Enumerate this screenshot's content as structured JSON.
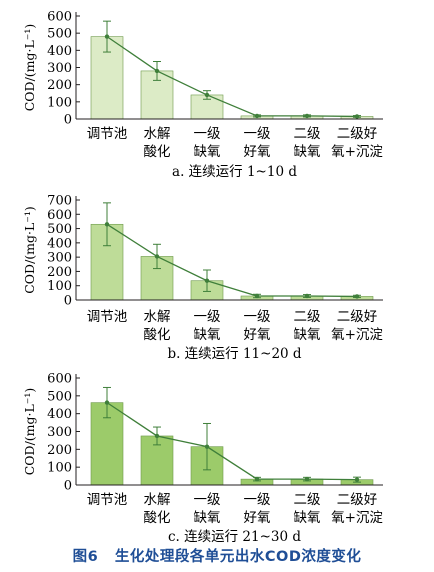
{
  "figure_caption": {
    "number": "图6",
    "title": "生化处理段各单元出水COD浓度变化"
  },
  "colors": {
    "panel_a_bar": "#dcebc6",
    "panel_b_bar": "#bedc98",
    "panel_c_bar": "#9ccb6a",
    "line": "#3f7f3a",
    "axis": "#231f20",
    "caption": "#1f4e96"
  },
  "chart_data": [
    {
      "type": "bar",
      "caption": "a. 连续运行 1~10 d",
      "ylabel": "COD/(mg·L⁻¹)",
      "ylim": [
        0,
        600
      ],
      "yticks": [
        "0",
        "100",
        "200",
        "300",
        "400",
        "500",
        "600"
      ],
      "categories": [
        [
          "调节池"
        ],
        [
          "水解",
          "酸化"
        ],
        [
          "一级",
          "缺氧"
        ],
        [
          "一级",
          "好氧"
        ],
        [
          "二级",
          "缺氧"
        ],
        [
          "二级好",
          "氧+沉淀"
        ]
      ],
      "values": [
        480,
        280,
        140,
        18,
        18,
        15
      ],
      "errors": [
        90,
        55,
        25,
        6,
        6,
        5
      ],
      "overlay_line": true
    },
    {
      "type": "bar",
      "caption": "b. 连续运行 11~20 d",
      "ylabel": "COD/(mg·L⁻¹)",
      "ylim": [
        0,
        700
      ],
      "yticks": [
        "0",
        "100",
        "200",
        "300",
        "400",
        "500",
        "600",
        "700"
      ],
      "categories": [
        [
          "调节池"
        ],
        [
          "水解",
          "酸化"
        ],
        [
          "一级",
          "缺氧"
        ],
        [
          "一级",
          "好氧"
        ],
        [
          "二级",
          "缺氧"
        ],
        [
          "二级好",
          "氧+沉淀"
        ]
      ],
      "values": [
        530,
        305,
        135,
        28,
        28,
        25
      ],
      "errors": [
        150,
        85,
        75,
        12,
        10,
        8
      ],
      "overlay_line": true
    },
    {
      "type": "bar",
      "caption": "c. 连续运行 21~30 d",
      "ylabel": "COD/(mg·L⁻¹)",
      "ylim": [
        0,
        600
      ],
      "yticks": [
        "0",
        "100",
        "200",
        "300",
        "400",
        "500",
        "600"
      ],
      "categories": [
        [
          "调节池"
        ],
        [
          "水解",
          "酸化"
        ],
        [
          "一级",
          "缺氧"
        ],
        [
          "一级",
          "好氧"
        ],
        [
          "二级",
          "缺氧"
        ],
        [
          "二级好",
          "氧+沉淀"
        ]
      ],
      "values": [
        462,
        275,
        215,
        33,
        33,
        30
      ],
      "errors": [
        85,
        50,
        130,
        10,
        10,
        14
      ],
      "overlay_line": true
    }
  ]
}
